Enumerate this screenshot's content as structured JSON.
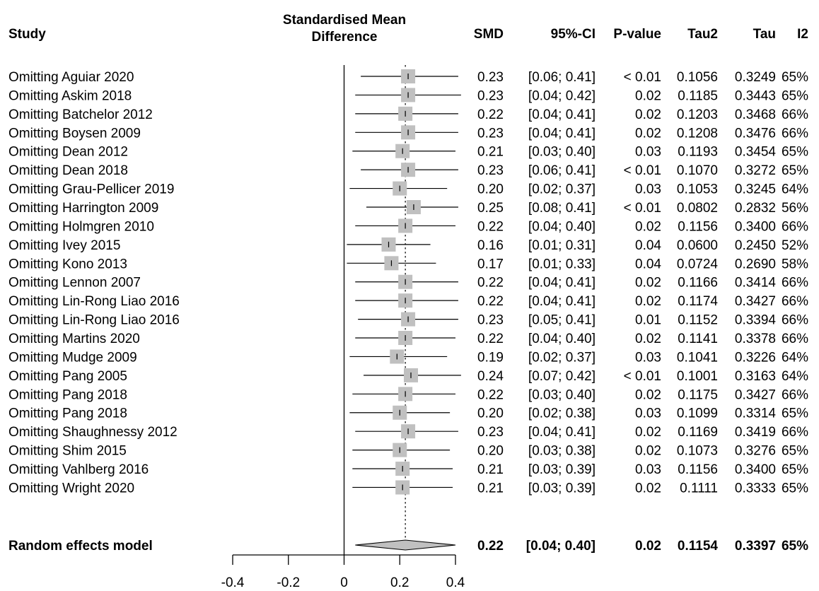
{
  "chart_data": {
    "type": "forest",
    "headers": {
      "study": "Study",
      "effect_line1": "Standardised Mean",
      "effect_line2": "Difference",
      "smd": "SMD",
      "ci": "95%-CI",
      "pvalue": "P-value",
      "tau2": "Tau2",
      "tau": "Tau",
      "i2": "I2"
    },
    "xlim": [
      -0.4,
      0.4
    ],
    "xticks": [
      "-0.4",
      "-0.2",
      "0",
      "0.2",
      "0.4"
    ],
    "reference_line": 0,
    "pooled_reference": 0.22,
    "rows": [
      {
        "study": "Omitting Aguiar  2020",
        "smd": 0.23,
        "lower": 0.06,
        "upper": 0.41,
        "smd_text": "0.23",
        "ci_text": "[0.06; 0.41]",
        "p_text": "< 0.01",
        "tau2_text": "0.1056",
        "tau_text": "0.3249",
        "i2_text": "65%"
      },
      {
        "study": "Omitting Askim  2018",
        "smd": 0.23,
        "lower": 0.04,
        "upper": 0.42,
        "smd_text": "0.23",
        "ci_text": "[0.04; 0.42]",
        "p_text": "0.02",
        "tau2_text": "0.1185",
        "tau_text": "0.3443",
        "i2_text": "65%"
      },
      {
        "study": "Omitting Batchelor  2012",
        "smd": 0.22,
        "lower": 0.04,
        "upper": 0.41,
        "smd_text": "0.22",
        "ci_text": "[0.04; 0.41]",
        "p_text": "0.02",
        "tau2_text": "0.1203",
        "tau_text": "0.3468",
        "i2_text": "66%"
      },
      {
        "study": "Omitting Boysen  2009",
        "smd": 0.23,
        "lower": 0.04,
        "upper": 0.41,
        "smd_text": "0.23",
        "ci_text": "[0.04; 0.41]",
        "p_text": "0.02",
        "tau2_text": "0.1208",
        "tau_text": "0.3476",
        "i2_text": "66%"
      },
      {
        "study": "Omitting Dean  2012",
        "smd": 0.21,
        "lower": 0.03,
        "upper": 0.4,
        "smd_text": "0.21",
        "ci_text": "[0.03; 0.40]",
        "p_text": "0.03",
        "tau2_text": "0.1193",
        "tau_text": "0.3454",
        "i2_text": "65%"
      },
      {
        "study": "Omitting Dean  2018",
        "smd": 0.23,
        "lower": 0.06,
        "upper": 0.41,
        "smd_text": "0.23",
        "ci_text": "[0.06; 0.41]",
        "p_text": "< 0.01",
        "tau2_text": "0.1070",
        "tau_text": "0.3272",
        "i2_text": "65%"
      },
      {
        "study": "Omitting Grau-Pellicer  2019",
        "smd": 0.2,
        "lower": 0.02,
        "upper": 0.37,
        "smd_text": "0.20",
        "ci_text": "[0.02; 0.37]",
        "p_text": "0.03",
        "tau2_text": "0.1053",
        "tau_text": "0.3245",
        "i2_text": "64%"
      },
      {
        "study": "Omitting Harrington  2009",
        "smd": 0.25,
        "lower": 0.08,
        "upper": 0.41,
        "smd_text": "0.25",
        "ci_text": "[0.08; 0.41]",
        "p_text": "< 0.01",
        "tau2_text": "0.0802",
        "tau_text": "0.2832",
        "i2_text": "56%"
      },
      {
        "study": "Omitting Holmgren  2010",
        "smd": 0.22,
        "lower": 0.04,
        "upper": 0.4,
        "smd_text": "0.22",
        "ci_text": "[0.04; 0.40]",
        "p_text": "0.02",
        "tau2_text": "0.1156",
        "tau_text": "0.3400",
        "i2_text": "66%"
      },
      {
        "study": "Omitting Ivey  2015",
        "smd": 0.16,
        "lower": 0.01,
        "upper": 0.31,
        "smd_text": "0.16",
        "ci_text": "[0.01; 0.31]",
        "p_text": "0.04",
        "tau2_text": "0.0600",
        "tau_text": "0.2450",
        "i2_text": "52%"
      },
      {
        "study": "Omitting Kono  2013",
        "smd": 0.17,
        "lower": 0.01,
        "upper": 0.33,
        "smd_text": "0.17",
        "ci_text": "[0.01; 0.33]",
        "p_text": "0.04",
        "tau2_text": "0.0724",
        "tau_text": "0.2690",
        "i2_text": "58%"
      },
      {
        "study": "Omitting Lennon  2007",
        "smd": 0.22,
        "lower": 0.04,
        "upper": 0.41,
        "smd_text": "0.22",
        "ci_text": "[0.04; 0.41]",
        "p_text": "0.02",
        "tau2_text": "0.1166",
        "tau_text": "0.3414",
        "i2_text": "66%"
      },
      {
        "study": "Omitting Lin-Rong Liao  2016",
        "smd": 0.22,
        "lower": 0.04,
        "upper": 0.41,
        "smd_text": "0.22",
        "ci_text": "[0.04; 0.41]",
        "p_text": "0.02",
        "tau2_text": "0.1174",
        "tau_text": "0.3427",
        "i2_text": "66%"
      },
      {
        "study": "Omitting Lin-Rong Liao  2016",
        "smd": 0.23,
        "lower": 0.05,
        "upper": 0.41,
        "smd_text": "0.23",
        "ci_text": "[0.05; 0.41]",
        "p_text": "0.01",
        "tau2_text": "0.1152",
        "tau_text": "0.3394",
        "i2_text": "66%"
      },
      {
        "study": "Omitting Martins  2020",
        "smd": 0.22,
        "lower": 0.04,
        "upper": 0.4,
        "smd_text": "0.22",
        "ci_text": "[0.04; 0.40]",
        "p_text": "0.02",
        "tau2_text": "0.1141",
        "tau_text": "0.3378",
        "i2_text": "66%"
      },
      {
        "study": "Omitting Mudge  2009",
        "smd": 0.19,
        "lower": 0.02,
        "upper": 0.37,
        "smd_text": "0.19",
        "ci_text": "[0.02; 0.37]",
        "p_text": "0.03",
        "tau2_text": "0.1041",
        "tau_text": "0.3226",
        "i2_text": "64%"
      },
      {
        "study": "Omitting Pang  2005",
        "smd": 0.24,
        "lower": 0.07,
        "upper": 0.42,
        "smd_text": "0.24",
        "ci_text": "[0.07; 0.42]",
        "p_text": "< 0.01",
        "tau2_text": "0.1001",
        "tau_text": "0.3163",
        "i2_text": "64%"
      },
      {
        "study": "Omitting Pang  2018",
        "smd": 0.22,
        "lower": 0.03,
        "upper": 0.4,
        "smd_text": "0.22",
        "ci_text": "[0.03; 0.40]",
        "p_text": "0.02",
        "tau2_text": "0.1175",
        "tau_text": "0.3427",
        "i2_text": "66%"
      },
      {
        "study": "Omitting Pang  2018",
        "smd": 0.2,
        "lower": 0.02,
        "upper": 0.38,
        "smd_text": "0.20",
        "ci_text": "[0.02; 0.38]",
        "p_text": "0.03",
        "tau2_text": "0.1099",
        "tau_text": "0.3314",
        "i2_text": "65%"
      },
      {
        "study": "Omitting Shaughnessy  2012",
        "smd": 0.23,
        "lower": 0.04,
        "upper": 0.41,
        "smd_text": "0.23",
        "ci_text": "[0.04; 0.41]",
        "p_text": "0.02",
        "tau2_text": "0.1169",
        "tau_text": "0.3419",
        "i2_text": "66%"
      },
      {
        "study": "Omitting Shim  2015",
        "smd": 0.2,
        "lower": 0.03,
        "upper": 0.38,
        "smd_text": "0.20",
        "ci_text": "[0.03; 0.38]",
        "p_text": "0.02",
        "tau2_text": "0.1073",
        "tau_text": "0.3276",
        "i2_text": "65%"
      },
      {
        "study": "Omitting Vahlberg  2016",
        "smd": 0.21,
        "lower": 0.03,
        "upper": 0.39,
        "smd_text": "0.21",
        "ci_text": "[0.03; 0.39]",
        "p_text": "0.03",
        "tau2_text": "0.1156",
        "tau_text": "0.3400",
        "i2_text": "65%"
      },
      {
        "study": "Omitting Wright  2020",
        "smd": 0.21,
        "lower": 0.03,
        "upper": 0.39,
        "smd_text": "0.21",
        "ci_text": "[0.03; 0.39]",
        "p_text": "0.02",
        "tau2_text": "0.1111",
        "tau_text": "0.3333",
        "i2_text": "65%"
      }
    ],
    "summary": {
      "study": "Random effects model",
      "smd": 0.22,
      "lower": 0.04,
      "upper": 0.4,
      "smd_text": "0.22",
      "ci_text": "[0.04; 0.40]",
      "p_text": "0.02",
      "tau2_text": "0.1154",
      "tau_text": "0.3397",
      "i2_text": "65%"
    },
    "colors": {
      "square": "#c0c0c0",
      "diamond": "#c0c0c0",
      "line": "#000000"
    }
  }
}
